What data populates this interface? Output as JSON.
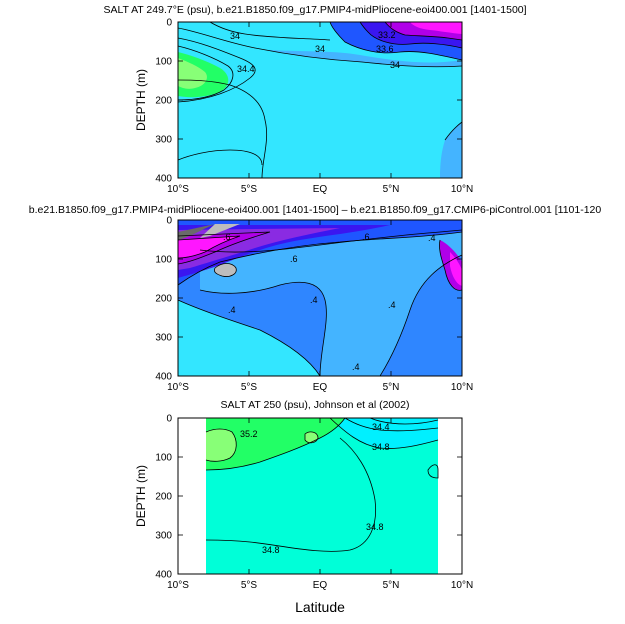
{
  "figure": {
    "xlabel": "Latitude",
    "ylabel": "DEPTH (m)"
  },
  "colors": {
    "deep_cyan": "#33e6ff",
    "light_blue": "#44b4ff",
    "mid_blue": "#2f86ff",
    "blue": "#1f56ff",
    "indigo": "#3a16f0",
    "violet": "#8a2be2",
    "purple": "#b000e8",
    "magenta": "#ff16ff",
    "gray": "#bdbdbd",
    "dark_gray": "#6a6a6a",
    "green": "#22ff66",
    "light_green": "#88ff77",
    "aqua": "#00ffd8",
    "cyan": "#00f0ff"
  },
  "chart_data": [
    {
      "type": "heatmap",
      "title": "SALT AT 249.7°E (psu), b.e21.B1850.f09_g17.PMIP4-midPliocene-eoi400.001 [1401-1500]",
      "xlabel": "",
      "ylabel": "DEPTH (m)",
      "xlim": [
        -10,
        10
      ],
      "ylim": [
        400,
        0
      ],
      "xticks": [
        "10°S",
        "5°S",
        "EQ",
        "5°N",
        "10°N"
      ],
      "yticks": [
        "0",
        "100",
        "200",
        "300",
        "400"
      ],
      "contour_labels": [
        "34",
        "34.4",
        "34",
        "33.6",
        "33.2",
        "34"
      ]
    },
    {
      "type": "heatmap",
      "title": "b.e21.B1850.f09_g17.PMIP4-midPliocene-eoi400.001 [1401-1500] – b.e21.B1850.f09_g17.CMIP6-piControl.001 [1101-120",
      "xlabel": "",
      "ylabel": "",
      "xlim": [
        -10,
        10
      ],
      "ylim": [
        400,
        0
      ],
      "xticks": [
        "10°S",
        "5°S",
        "EQ",
        "5°N",
        "10°N"
      ],
      "yticks": [
        "0",
        "100",
        "200",
        "300",
        "400"
      ],
      "contour_labels": [
        ".6",
        ".6",
        ".6",
        ".4",
        ".4",
        ".4",
        ".4",
        ".4"
      ]
    },
    {
      "type": "heatmap",
      "title": "SALT AT 250 (psu), Johnson et al (2002)",
      "xlabel": "Latitude",
      "ylabel": "DEPTH (m)",
      "xlim": [
        -10,
        10
      ],
      "ylim": [
        400,
        0
      ],
      "xticks": [
        "10°S",
        "5°S",
        "EQ",
        "5°N",
        "10°N"
      ],
      "yticks": [
        "0",
        "100",
        "200",
        "300",
        "400"
      ],
      "contour_labels": [
        "35.2",
        "34.4",
        "34.8",
        "34.8",
        "34.8"
      ]
    }
  ]
}
